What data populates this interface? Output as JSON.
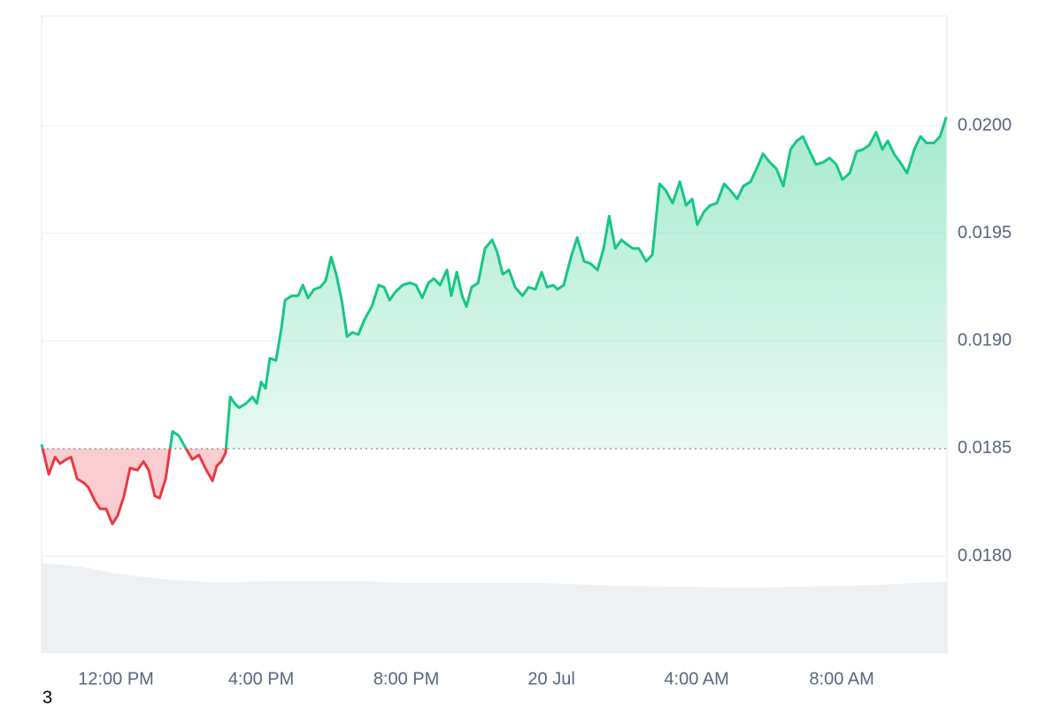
{
  "chart_data": {
    "type": "line",
    "x": [
      -2.05,
      -1.85,
      -1.68,
      -1.54,
      -1.37,
      -1.24,
      -1.07,
      -0.88,
      -0.76,
      -0.59,
      -0.44,
      -0.27,
      -0.1,
      0.05,
      0.22,
      0.39,
      0.59,
      0.76,
      0.9,
      1.07,
      1.2,
      1.37,
      1.56,
      1.73,
      1.93,
      2.1,
      2.29,
      2.46,
      2.66,
      2.78,
      2.9,
      3.02,
      3.15,
      3.27,
      3.39,
      3.59,
      3.76,
      3.88,
      4.0,
      4.12,
      4.24,
      4.41,
      4.56,
      4.66,
      4.85,
      5.02,
      5.15,
      5.29,
      5.46,
      5.63,
      5.78,
      5.93,
      6.07,
      6.22,
      6.37,
      6.51,
      6.68,
      6.85,
      7.05,
      7.24,
      7.39,
      7.54,
      7.71,
      7.9,
      8.1,
      8.27,
      8.44,
      8.61,
      8.76,
      8.93,
      9.12,
      9.24,
      9.39,
      9.54,
      9.66,
      9.8,
      9.98,
      10.17,
      10.37,
      10.51,
      10.66,
      10.83,
      11.0,
      11.2,
      11.37,
      11.56,
      11.73,
      11.88,
      12.05,
      12.17,
      12.34,
      12.54,
      12.71,
      12.9,
      13.07,
      13.27,
      13.44,
      13.59,
      13.76,
      13.93,
      14.07,
      14.24,
      14.41,
      14.61,
      14.78,
      14.98,
      15.15,
      15.34,
      15.54,
      15.71,
      15.88,
      16.02,
      16.2,
      16.37,
      16.56,
      16.76,
      16.93,
      17.12,
      17.29,
      17.49,
      17.68,
      17.83,
      18.02,
      18.2,
      18.39,
      18.59,
      18.76,
      18.93,
      19.12,
      19.29,
      19.49,
      19.66,
      19.85,
      20.02,
      20.22,
      20.41,
      20.59,
      20.76,
      20.95,
      21.12,
      21.27,
      21.44,
      21.61,
      21.8,
      22.0,
      22.17,
      22.34,
      22.54,
      22.71,
      22.88
    ],
    "values": [
      0.01852,
      0.01838,
      0.01846,
      0.01843,
      0.01845,
      0.01846,
      0.01836,
      0.01834,
      0.01832,
      0.01826,
      0.01822,
      0.01822,
      0.01815,
      0.01819,
      0.01828,
      0.01841,
      0.0184,
      0.01844,
      0.0184,
      0.01828,
      0.01827,
      0.01836,
      0.01858,
      0.01856,
      0.0185,
      0.01845,
      0.01847,
      0.01841,
      0.01835,
      0.01842,
      0.01844,
      0.01848,
      0.01874,
      0.01871,
      0.01869,
      0.01871,
      0.01874,
      0.01871,
      0.01881,
      0.01878,
      0.01892,
      0.01891,
      0.01906,
      0.01919,
      0.01921,
      0.01921,
      0.01926,
      0.0192,
      0.01924,
      0.01925,
      0.01928,
      0.01939,
      0.01931,
      0.01919,
      0.01902,
      0.01904,
      0.01903,
      0.0191,
      0.01916,
      0.01926,
      0.01925,
      0.01919,
      0.01923,
      0.01926,
      0.01927,
      0.01926,
      0.0192,
      0.01927,
      0.01929,
      0.01926,
      0.01933,
      0.01921,
      0.01932,
      0.01921,
      0.01916,
      0.01925,
      0.01927,
      0.01943,
      0.01947,
      0.01941,
      0.01931,
      0.01933,
      0.01925,
      0.01921,
      0.01925,
      0.01924,
      0.01932,
      0.01925,
      0.01926,
      0.01924,
      0.01926,
      0.01939,
      0.01948,
      0.01937,
      0.01936,
      0.01933,
      0.01943,
      0.01958,
      0.01943,
      0.01947,
      0.01945,
      0.01943,
      0.01943,
      0.01937,
      0.0194,
      0.01973,
      0.0197,
      0.01964,
      0.01974,
      0.01963,
      0.01966,
      0.01954,
      0.0196,
      0.01963,
      0.01964,
      0.01973,
      0.0197,
      0.01966,
      0.01972,
      0.01974,
      0.01981,
      0.01987,
      0.01983,
      0.0198,
      0.01972,
      0.01989,
      0.01993,
      0.01995,
      0.01988,
      0.01982,
      0.01983,
      0.01985,
      0.01982,
      0.01975,
      0.01978,
      0.01988,
      0.01989,
      0.01991,
      0.01997,
      0.01989,
      0.01993,
      0.01987,
      0.01983,
      0.01978,
      0.01989,
      0.01995,
      0.01992,
      0.01992,
      0.01995,
      0.02004
    ],
    "baseline": 0.0185,
    "up_color": "#16c784",
    "down_color": "#ea3943",
    "xlim": [
      -2.05,
      22.9
    ],
    "xticks": [
      {
        "value": 0,
        "label": "12:00 PM"
      },
      {
        "value": 4,
        "label": "4:00 PM"
      },
      {
        "value": 8,
        "label": "8:00 PM"
      },
      {
        "value": 12,
        "label": "20 Jul"
      },
      {
        "value": 16,
        "label": "4:00 AM"
      },
      {
        "value": 20,
        "label": "8:00 AM"
      }
    ],
    "ylim": [
      0.01755,
      0.02051
    ],
    "yticks": [
      {
        "value": 0.018,
        "label": "0.0180"
      },
      {
        "value": 0.0185,
        "label": "0.0185"
      },
      {
        "value": 0.019,
        "label": "0.0190"
      },
      {
        "value": 0.0195,
        "label": "0.0195"
      },
      {
        "value": 0.02,
        "label": "0.0200"
      }
    ],
    "grid": true,
    "footnote": "3"
  }
}
